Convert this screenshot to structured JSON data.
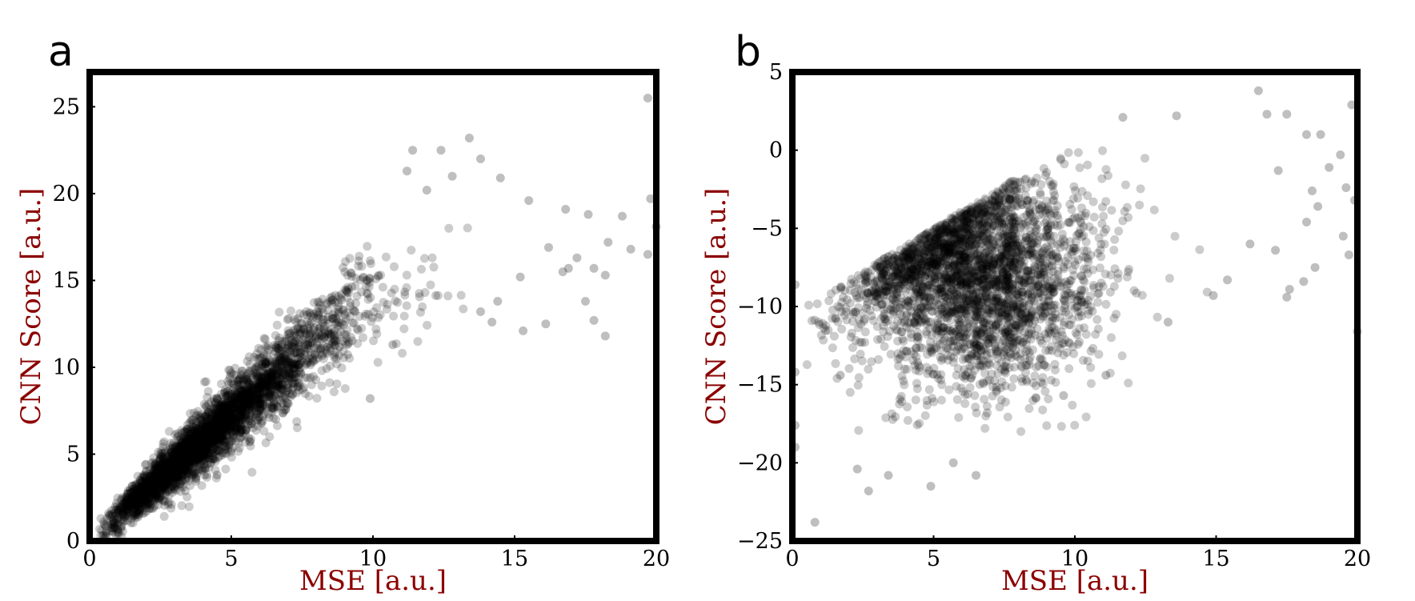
{
  "colors": {
    "axis_label": "#8b0000",
    "point": "#000000",
    "frame": "#000000"
  },
  "chart_data": [
    {
      "type": "scatter",
      "panel_label": "a",
      "xlabel": "MSE [a.u.]",
      "ylabel": "CNN Score [a.u.]",
      "xlim": [
        0,
        20
      ],
      "ylim": [
        0,
        27
      ],
      "xticks": [
        0,
        5,
        10,
        15,
        20
      ],
      "yticks": [
        0,
        5,
        10,
        15,
        20,
        25
      ],
      "grid": false,
      "legend": "none",
      "point_opacity": 0.2,
      "relationship": "dense positive linear trend, y approx 1.45*x for x < 10, saturating around y 13-18 for x > 10",
      "outliers": [
        {
          "x": 19.7,
          "y": 25.5
        },
        {
          "x": 13.4,
          "y": 23.2
        },
        {
          "x": 12.4,
          "y": 22.5
        },
        {
          "x": 11.4,
          "y": 22.5
        },
        {
          "x": 13.8,
          "y": 22.0
        },
        {
          "x": 11.2,
          "y": 21.3
        },
        {
          "x": 12.8,
          "y": 21.0
        },
        {
          "x": 14.5,
          "y": 20.9
        },
        {
          "x": 11.9,
          "y": 20.2
        },
        {
          "x": 19.8,
          "y": 19.7
        },
        {
          "x": 15.5,
          "y": 19.6
        },
        {
          "x": 16.8,
          "y": 19.1
        },
        {
          "x": 18.8,
          "y": 18.7
        },
        {
          "x": 17.6,
          "y": 18.8
        },
        {
          "x": 20.0,
          "y": 18.1
        },
        {
          "x": 18.3,
          "y": 17.2
        },
        {
          "x": 19.1,
          "y": 16.8
        },
        {
          "x": 16.2,
          "y": 16.9
        },
        {
          "x": 19.7,
          "y": 16.5
        },
        {
          "x": 17.2,
          "y": 16.3
        },
        {
          "x": 16.9,
          "y": 15.7
        },
        {
          "x": 17.8,
          "y": 15.7
        },
        {
          "x": 16.7,
          "y": 15.5
        },
        {
          "x": 18.2,
          "y": 15.3
        },
        {
          "x": 15.2,
          "y": 15.2
        },
        {
          "x": 17.5,
          "y": 13.8
        },
        {
          "x": 14.4,
          "y": 13.8
        },
        {
          "x": 13.8,
          "y": 13.2
        },
        {
          "x": 17.8,
          "y": 12.7
        },
        {
          "x": 16.1,
          "y": 12.5
        },
        {
          "x": 14.2,
          "y": 12.6
        },
        {
          "x": 15.3,
          "y": 12.1
        },
        {
          "x": 18.2,
          "y": 11.8
        },
        {
          "x": 10.7,
          "y": 11.3
        },
        {
          "x": 9.9,
          "y": 8.2
        },
        {
          "x": 4.5,
          "y": 3.8
        }
      ]
    },
    {
      "type": "scatter",
      "panel_label": "b",
      "xlabel": "MSE [a.u.]",
      "ylabel": "CNN Score [a.u.]",
      "xlim": [
        0,
        20
      ],
      "ylim": [
        -25,
        5
      ],
      "xticks": [
        0,
        5,
        10,
        15,
        20
      ],
      "yticks": [
        -25,
        -20,
        -15,
        -10,
        -5,
        0,
        5
      ],
      "grid": false,
      "legend": "none",
      "point_opacity": 0.2,
      "relationship": "broad cloud centred near x 6-7, y -8; upper envelope rising from about -10 at x 0 to about 0 at x 10, flat beyond",
      "outliers": [
        {
          "x": 16.5,
          "y": 3.8
        },
        {
          "x": 19.8,
          "y": 2.9
        },
        {
          "x": 17.5,
          "y": 2.3
        },
        {
          "x": 16.8,
          "y": 2.3
        },
        {
          "x": 13.6,
          "y": 2.2
        },
        {
          "x": 11.7,
          "y": 2.1
        },
        {
          "x": 18.2,
          "y": 1.0
        },
        {
          "x": 18.7,
          "y": 1.0
        },
        {
          "x": 19.4,
          "y": -0.3
        },
        {
          "x": 19.0,
          "y": -1.1
        },
        {
          "x": 17.2,
          "y": -1.3
        },
        {
          "x": 19.6,
          "y": -2.4
        },
        {
          "x": 18.4,
          "y": -2.6
        },
        {
          "x": 19.9,
          "y": -3.2
        },
        {
          "x": 18.6,
          "y": -3.6
        },
        {
          "x": 18.2,
          "y": -4.6
        },
        {
          "x": 19.5,
          "y": -5.5
        },
        {
          "x": 16.2,
          "y": -6.0
        },
        {
          "x": 17.1,
          "y": -6.4
        },
        {
          "x": 19.7,
          "y": -6.7
        },
        {
          "x": 18.5,
          "y": -7.5
        },
        {
          "x": 18.1,
          "y": -8.4
        },
        {
          "x": 15.4,
          "y": -8.3
        },
        {
          "x": 17.6,
          "y": -8.9
        },
        {
          "x": 14.9,
          "y": -9.3
        },
        {
          "x": 17.5,
          "y": -9.4
        },
        {
          "x": 13.3,
          "y": -11.0
        },
        {
          "x": 20.0,
          "y": -11.6
        },
        {
          "x": 11.1,
          "y": -14.4
        },
        {
          "x": 9.6,
          "y": -15.7
        },
        {
          "x": 0.1,
          "y": -8.6
        },
        {
          "x": 0.1,
          "y": -14.2
        },
        {
          "x": 0.1,
          "y": -17.6
        },
        {
          "x": 0.1,
          "y": -19.0
        },
        {
          "x": 0.8,
          "y": -23.8
        },
        {
          "x": 4.9,
          "y": -21.5
        },
        {
          "x": 2.7,
          "y": -21.8
        },
        {
          "x": 2.3,
          "y": -20.4
        },
        {
          "x": 3.4,
          "y": -20.8
        },
        {
          "x": 6.5,
          "y": -20.8
        },
        {
          "x": 5.7,
          "y": -20.0
        },
        {
          "x": 1.7,
          "y": -14.4
        }
      ]
    }
  ]
}
